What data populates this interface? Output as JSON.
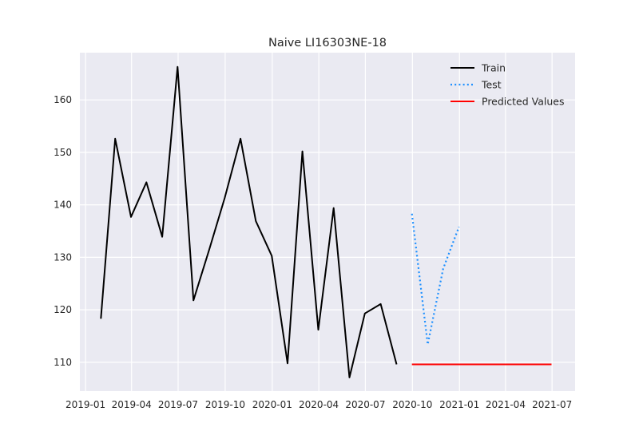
{
  "chart_data": {
    "type": "line",
    "title": "Naive LI16303NE-18",
    "xlabel": "",
    "ylabel": "",
    "x_ticks": [
      "2019-01",
      "2019-04",
      "2019-07",
      "2019-10",
      "2020-01",
      "2020-04",
      "2020-07",
      "2020-10",
      "2021-01",
      "2021-04",
      "2021-07"
    ],
    "y_ticks": [
      110,
      120,
      130,
      140,
      150,
      160
    ],
    "ylim": [
      104.5,
      169
    ],
    "xlim": [
      "2018-12-21",
      "2021-08-15"
    ],
    "grid": true,
    "legend_position": "top-right",
    "series": [
      {
        "name": "Train",
        "color": "#000000",
        "style": "solid",
        "points": [
          [
            "2019-01-31",
            118.3
          ],
          [
            "2019-02-28",
            152.6
          ],
          [
            "2019-03-31",
            137.7
          ],
          [
            "2019-04-30",
            144.3
          ],
          [
            "2019-05-31",
            133.9
          ],
          [
            "2019-06-30",
            166.3
          ],
          [
            "2019-07-31",
            121.8
          ],
          [
            "2019-08-31",
            131.5
          ],
          [
            "2019-09-30",
            141.3
          ],
          [
            "2019-10-31",
            152.6
          ],
          [
            "2019-11-30",
            136.9
          ],
          [
            "2019-12-31",
            130.3
          ],
          [
            "2020-01-31",
            109.8
          ],
          [
            "2020-02-29",
            150.2
          ],
          [
            "2020-03-31",
            116.2
          ],
          [
            "2020-04-30",
            139.4
          ],
          [
            "2020-05-31",
            107.1
          ],
          [
            "2020-06-30",
            119.3
          ],
          [
            "2020-07-31",
            121.1
          ],
          [
            "2020-08-31",
            109.6
          ]
        ]
      },
      {
        "name": "Test",
        "color": "#1e90ff",
        "style": "dotted",
        "points": [
          [
            "2020-09-30",
            138.3
          ],
          [
            "2020-10-31",
            113.4
          ],
          [
            "2020-11-30",
            127.8
          ],
          [
            "2020-12-31",
            135.8
          ]
        ]
      },
      {
        "name": "Predicted Values",
        "color": "#ff0000",
        "style": "solid",
        "points": [
          [
            "2020-09-30",
            109.6
          ],
          [
            "2021-06-30",
            109.6
          ]
        ]
      }
    ]
  }
}
